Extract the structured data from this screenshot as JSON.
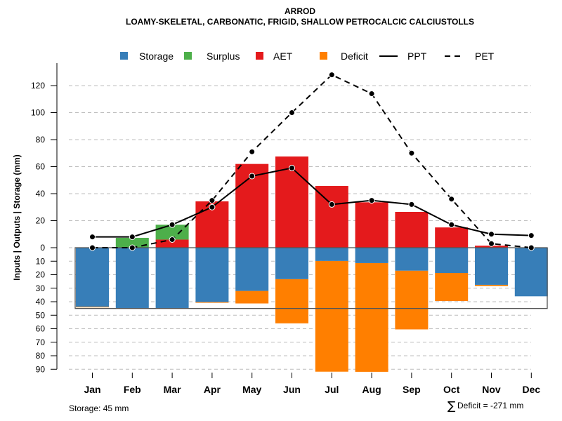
{
  "chart_data": {
    "type": "bar",
    "title": "ARROD",
    "subtitle": "LOAMY-SKELETAL, CARBONATIC, FRIGID, SHALLOW PETROCALCIC CALCIUSTOLLS",
    "ylabel": "Inputs | Outputs | Storage    (mm)",
    "xlabel": "",
    "categories": [
      "Jan",
      "Feb",
      "Mar",
      "Apr",
      "May",
      "Jun",
      "Jul",
      "Aug",
      "Sep",
      "Oct",
      "Nov",
      "Dec"
    ],
    "upper_yticks": [
      0,
      20,
      40,
      60,
      80,
      100,
      120
    ],
    "lower_yticks": [
      10,
      20,
      30,
      40,
      50,
      60,
      70,
      80,
      90
    ],
    "ylim_upper": [
      0,
      135
    ],
    "ylim_lower": [
      0,
      90
    ],
    "grid": true,
    "legend_position": "top",
    "storage_capacity_mm": 45,
    "series": [
      {
        "name": "Storage",
        "kind": "bar-below",
        "color": "#377EB8",
        "values": [
          43.7,
          45,
          45,
          40.2,
          32,
          23.3,
          9.8,
          11.4,
          17,
          18.7,
          27.5,
          36
        ]
      },
      {
        "name": "Surplus",
        "kind": "bar-above-stacked",
        "color": "#4DAF4A",
        "values": [
          0,
          7.3,
          11,
          0,
          0,
          0,
          0,
          0,
          0,
          0,
          0,
          0
        ]
      },
      {
        "name": "AET",
        "kind": "bar-above",
        "color": "#E41A1C",
        "values": [
          0,
          0,
          6,
          34.3,
          62,
          67.5,
          45.7,
          33.6,
          26.5,
          15,
          1.5,
          0
        ]
      },
      {
        "name": "Deficit",
        "kind": "bar-below-stacked",
        "color": "#FF7F00",
        "values": [
          0.5,
          0,
          0,
          0.6,
          9.3,
          32.7,
          82,
          80.5,
          43.5,
          20.8,
          0.9,
          0
        ]
      },
      {
        "name": "PPT",
        "kind": "line-solid",
        "color": "#000000",
        "values": [
          8,
          8,
          17,
          30,
          53,
          59,
          32,
          35,
          32,
          17,
          10,
          9
        ]
      },
      {
        "name": "PET",
        "kind": "line-dashed",
        "color": "#000000",
        "values": [
          0,
          0,
          6,
          35,
          71,
          100,
          128,
          114,
          70,
          36,
          3,
          0
        ]
      }
    ],
    "legend": [
      {
        "label": "Storage",
        "symbol": "square",
        "color": "#377EB8"
      },
      {
        "label": "Surplus",
        "symbol": "square",
        "color": "#4DAF4A"
      },
      {
        "label": "AET",
        "symbol": "square",
        "color": "#E41A1C"
      },
      {
        "label": "Deficit",
        "symbol": "square",
        "color": "#FF7F00"
      },
      {
        "label": "PPT",
        "symbol": "solid-line",
        "color": "#000000"
      },
      {
        "label": "PET",
        "symbol": "dashed-line",
        "color": "#000000"
      }
    ],
    "annotations": {
      "storage_note": "Storage: 45 mm",
      "deficit_symbol": "∑",
      "deficit_note": "Deficit = -271 mm"
    }
  }
}
